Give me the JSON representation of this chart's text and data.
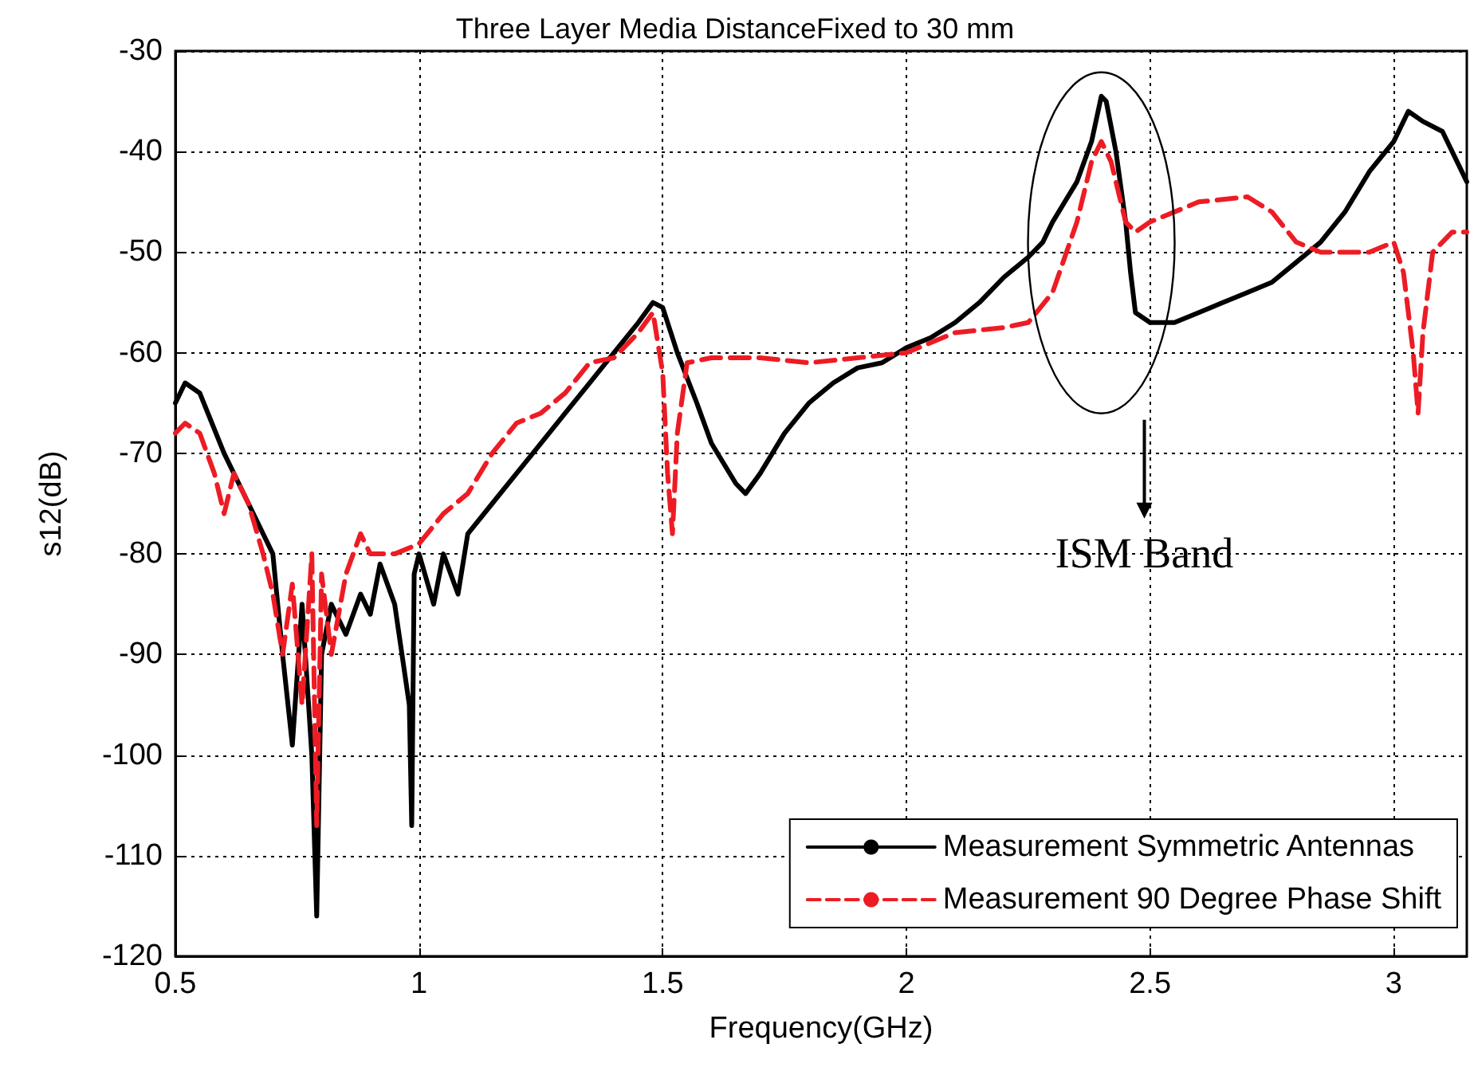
{
  "chart_data": {
    "type": "line",
    "title": "Three Layer Media DistanceFixed to 30 mm",
    "xlabel": "Frequency(GHz)",
    "ylabel": "s12(dB)",
    "xlim": [
      0.5,
      3.15
    ],
    "xticks": [
      0.5,
      1,
      1.5,
      2,
      2.5,
      3
    ],
    "ylim": [
      -120,
      -30
    ],
    "yticks": [
      -120,
      -110,
      -100,
      -90,
      -80,
      -70,
      -60,
      -50,
      -40,
      -30
    ],
    "grid": true,
    "legend": "bottom right",
    "annotations": [
      "ISM Band"
    ],
    "series": [
      {
        "name": "Measurement Symmetric Antennas",
        "color": "#000000",
        "line_style": "solid",
        "x": [
          0.5,
          0.52,
          0.55,
          0.6,
          0.65,
          0.7,
          0.72,
          0.74,
          0.76,
          0.78,
          0.79,
          0.8,
          0.82,
          0.85,
          0.88,
          0.9,
          0.92,
          0.95,
          0.98,
          0.985,
          0.99,
          1.0,
          1.03,
          1.05,
          1.08,
          1.1,
          1.15,
          1.2,
          1.25,
          1.3,
          1.35,
          1.4,
          1.45,
          1.48,
          1.5,
          1.53,
          1.57,
          1.6,
          1.65,
          1.67,
          1.7,
          1.75,
          1.8,
          1.85,
          1.9,
          1.95,
          2.0,
          2.05,
          2.1,
          2.15,
          2.2,
          2.25,
          2.28,
          2.3,
          2.35,
          2.38,
          2.4,
          2.41,
          2.43,
          2.45,
          2.46,
          2.47,
          2.5,
          2.55,
          2.6,
          2.65,
          2.7,
          2.75,
          2.8,
          2.85,
          2.9,
          2.95,
          3.0,
          3.03,
          3.06,
          3.1,
          3.15
        ],
        "values": [
          -65,
          -63,
          -64,
          -70,
          -75,
          -80,
          -90,
          -99,
          -85,
          -100,
          -116,
          -90,
          -85,
          -88,
          -84,
          -86,
          -81,
          -85,
          -95,
          -107,
          -82,
          -80,
          -85,
          -80,
          -84,
          -78,
          -75,
          -72,
          -69,
          -66,
          -63,
          -60,
          -57,
          -55,
          -55.5,
          -60,
          -65,
          -69,
          -73,
          -74,
          -72,
          -68,
          -65,
          -63,
          -61.5,
          -61,
          -59.5,
          -58.5,
          -57,
          -55,
          -52.5,
          -50.5,
          -49,
          -47,
          -43,
          -39,
          -34.5,
          -35,
          -40,
          -47,
          -52,
          -56,
          -57,
          -57,
          -56,
          -55,
          -54,
          -53,
          -51,
          -49,
          -46,
          -42,
          -39,
          -36,
          -37,
          -38,
          -43
        ]
      },
      {
        "name": "Measurement 90 Degree Phase Shift",
        "color": "#ed1c24",
        "line_style": "dashed",
        "x": [
          0.5,
          0.52,
          0.55,
          0.58,
          0.6,
          0.62,
          0.65,
          0.68,
          0.7,
          0.72,
          0.74,
          0.76,
          0.78,
          0.79,
          0.8,
          0.82,
          0.85,
          0.88,
          0.9,
          0.95,
          1.0,
          1.05,
          1.1,
          1.15,
          1.2,
          1.25,
          1.3,
          1.35,
          1.4,
          1.45,
          1.48,
          1.5,
          1.51,
          1.52,
          1.53,
          1.55,
          1.6,
          1.7,
          1.8,
          1.9,
          2.0,
          2.05,
          2.1,
          2.2,
          2.25,
          2.3,
          2.35,
          2.38,
          2.4,
          2.42,
          2.45,
          2.47,
          2.5,
          2.6,
          2.7,
          2.75,
          2.8,
          2.85,
          2.9,
          2.95,
          3.0,
          3.02,
          3.04,
          3.05,
          3.06,
          3.08,
          3.12,
          3.15
        ],
        "values": [
          -68,
          -67,
          -68,
          -72,
          -76,
          -72,
          -75,
          -80,
          -84,
          -90,
          -83,
          -95,
          -80,
          -107,
          -82,
          -90,
          -82,
          -78,
          -80,
          -80,
          -79,
          -76,
          -74,
          -70,
          -67,
          -66,
          -64,
          -61,
          -60.5,
          -58,
          -56,
          -62,
          -72,
          -78,
          -68,
          -61,
          -60.5,
          -60.5,
          -61,
          -60.5,
          -60,
          -59,
          -58,
          -57.5,
          -57,
          -54,
          -47,
          -41,
          -39,
          -41,
          -47,
          -48,
          -47,
          -45,
          -44.5,
          -46,
          -49,
          -50,
          -50,
          -50,
          -49,
          -52,
          -60,
          -66,
          -58,
          -50,
          -48,
          -48
        ]
      }
    ]
  }
}
